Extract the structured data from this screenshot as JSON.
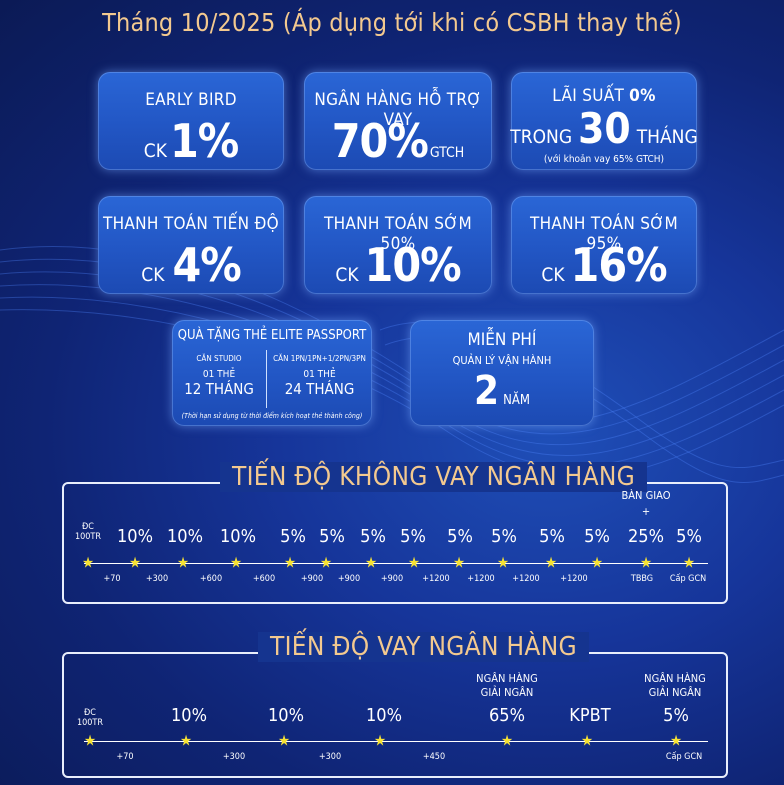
{
  "header": {
    "title": "Tháng 10/2025 (Áp dụng tới khi có CSBH thay thế)"
  },
  "offers": [
    {
      "label": "EARLY BIRD",
      "prefix": "CK",
      "value": "1%"
    },
    {
      "label": "NGÂN HÀNG HỖ TRỢ VAY",
      "value": "70%",
      "suffix": "GTCH"
    },
    {
      "label_a": "LÃI SUẤT",
      "label_b": "0%",
      "prefix": "TRONG",
      "value": "30",
      "suffix": "THÁNG",
      "note": "(với khoản vay 65% GTCH)"
    },
    {
      "label": "THANH TOÁN TIẾN ĐỘ",
      "prefix": "CK",
      "value": "4%"
    },
    {
      "label": "THANH TOÁN SỚM 50%",
      "prefix": "CK",
      "value": "10%"
    },
    {
      "label": "THANH TOÁN SỚM 95%",
      "prefix": "CK",
      "value": "16%"
    }
  ],
  "gift": {
    "title": "QUÀ TẶNG THẺ ELITE PASSPORT",
    "col1": {
      "head": "CĂN STUDIO",
      "qty": "01 THẺ",
      "term": "12 THÁNG"
    },
    "col2": {
      "head": "CĂN 1PN/1PN+1/2PN/3PN",
      "qty": "01 THẺ",
      "term": "24 THÁNG"
    },
    "note": "(Thời hạn sử dụng từ thời điểm kích hoạt thẻ thành công)"
  },
  "free": {
    "title": "MIỄN PHÍ",
    "subtitle": "QUẢN LÝ VẬN HÀNH",
    "value": "2",
    "unit": "NĂM"
  },
  "schedule_no_loan": {
    "title": "TIẾN ĐỘ KHÔNG VAY NGÂN HÀNG",
    "first_label": [
      "ĐC",
      "100TR"
    ],
    "handover": [
      "BÀN GIAO",
      "+"
    ],
    "steps": [
      "10%",
      "10%",
      "10%",
      "5%",
      "5%",
      "5%",
      "5%",
      "5%",
      "5%",
      "5%",
      "5%",
      "25%",
      "5%"
    ],
    "days": [
      "+70",
      "+300",
      "+600",
      "+600",
      "+900",
      "+900",
      "+900",
      "+1200",
      "+1200",
      "+1200",
      "+1200",
      "TBBG",
      "Cấp GCN"
    ]
  },
  "schedule_loan": {
    "title": "TIẾN ĐỘ VAY NGÂN HÀNG",
    "first_label": [
      "ĐC",
      "100TR"
    ],
    "bank_label": [
      "NGÂN HÀNG",
      "GIẢI NGÂN"
    ],
    "steps": [
      "10%",
      "10%",
      "10%",
      "65%",
      "KPBT",
      "5%"
    ],
    "days": [
      "+70",
      "+300",
      "+300",
      "+450",
      "Cấp GCN"
    ]
  }
}
